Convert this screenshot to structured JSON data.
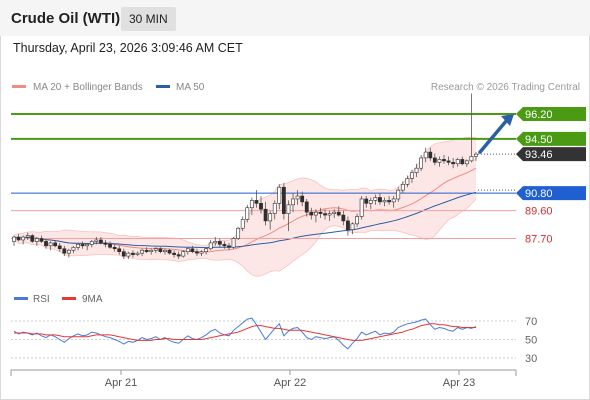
{
  "header": {
    "title": "Crude Oil (WTI)",
    "timeframe": "30 MIN",
    "datetime": "Thursday, April 23, 2026 3:09:46 AM CET"
  },
  "legend": {
    "ma20_label": "MA 20 + Bollinger Bands",
    "ma50_label": "MA 50",
    "credit": "Research © 2026 Trading Central",
    "ma20_color": "#f28b82",
    "ma50_color": "#2a5fa5"
  },
  "chart_data": [
    {
      "type": "candlestick",
      "title": "",
      "x_ticks": [
        "Apr 21",
        "Apr 22",
        "Apr 23"
      ],
      "levels": [
        {
          "name": "resistance_2",
          "value": 96.2,
          "label": "96.20",
          "color": "#4a9a14",
          "kind": "resistance"
        },
        {
          "name": "resistance_1",
          "value": 94.5,
          "label": "94.50",
          "color": "#4a9a14",
          "kind": "resistance"
        },
        {
          "name": "last_price",
          "value": 93.46,
          "label": "93.46",
          "color": "#333333",
          "kind": "price"
        },
        {
          "name": "pivot",
          "value": 90.8,
          "label": "90.80",
          "color": "#1f5fcf",
          "kind": "pivot"
        },
        {
          "name": "support_1",
          "value": 89.6,
          "label": "89.60",
          "color": "#d32f2f",
          "kind": "support"
        },
        {
          "name": "support_2",
          "value": 87.7,
          "label": "87.70",
          "color": "#d32f2f",
          "kind": "support"
        }
      ],
      "ohlc": [
        [
          87.5,
          87.9,
          87.2,
          87.8
        ],
        [
          87.8,
          88.0,
          87.5,
          87.6
        ],
        [
          87.6,
          87.9,
          87.3,
          87.8
        ],
        [
          87.8,
          88.1,
          87.6,
          87.9
        ],
        [
          87.9,
          88.0,
          87.4,
          87.5
        ],
        [
          87.5,
          87.8,
          87.2,
          87.7
        ],
        [
          87.7,
          87.9,
          87.4,
          87.5
        ],
        [
          87.5,
          87.6,
          87.0,
          87.2
        ],
        [
          87.2,
          87.5,
          86.9,
          87.4
        ],
        [
          87.4,
          87.6,
          87.1,
          87.2
        ],
        [
          87.2,
          87.4,
          86.8,
          87.0
        ],
        [
          87.0,
          87.2,
          86.5,
          86.7
        ],
        [
          86.7,
          87.0,
          86.4,
          86.9
        ],
        [
          86.9,
          87.2,
          86.7,
          87.1
        ],
        [
          87.1,
          87.4,
          86.9,
          87.3
        ],
        [
          87.3,
          87.5,
          87.0,
          87.2
        ],
        [
          87.2,
          87.4,
          86.9,
          87.3
        ],
        [
          87.3,
          87.6,
          87.1,
          87.5
        ],
        [
          87.5,
          87.8,
          87.3,
          87.6
        ],
        [
          87.6,
          87.8,
          87.3,
          87.4
        ],
        [
          87.4,
          87.6,
          87.1,
          87.3
        ],
        [
          87.3,
          87.5,
          87.0,
          87.1
        ],
        [
          87.1,
          87.3,
          86.8,
          87.0
        ],
        [
          87.0,
          87.2,
          86.6,
          86.8
        ],
        [
          86.8,
          87.0,
          86.3,
          86.5
        ],
        [
          86.5,
          86.8,
          86.3,
          86.7
        ],
        [
          86.7,
          86.9,
          86.4,
          86.6
        ],
        [
          86.6,
          86.8,
          86.5,
          86.7
        ],
        [
          86.7,
          87.0,
          86.5,
          86.9
        ],
        [
          86.9,
          87.1,
          86.7,
          86.8
        ],
        [
          86.8,
          87.0,
          86.6,
          86.9
        ],
        [
          86.9,
          87.1,
          86.7,
          87.0
        ],
        [
          87.0,
          87.1,
          86.7,
          86.8
        ],
        [
          86.8,
          87.0,
          86.6,
          86.9
        ],
        [
          86.9,
          87.0,
          86.6,
          86.7
        ],
        [
          86.7,
          86.9,
          86.4,
          86.6
        ],
        [
          86.6,
          86.8,
          86.3,
          86.5
        ],
        [
          86.5,
          86.9,
          86.4,
          86.8
        ],
        [
          86.8,
          87.1,
          86.6,
          87.0
        ],
        [
          87.0,
          87.2,
          86.7,
          86.8
        ],
        [
          86.8,
          87.0,
          86.5,
          86.7
        ],
        [
          86.7,
          86.9,
          86.5,
          86.8
        ],
        [
          86.8,
          87.1,
          86.6,
          87.0
        ],
        [
          87.0,
          87.6,
          86.9,
          87.4
        ],
        [
          87.4,
          87.8,
          87.2,
          87.5
        ],
        [
          87.5,
          87.7,
          87.1,
          87.3
        ],
        [
          87.3,
          87.5,
          87.0,
          87.2
        ],
        [
          87.2,
          87.4,
          86.9,
          87.1
        ],
        [
          87.1,
          87.8,
          87.0,
          87.7
        ],
        [
          87.7,
          88.5,
          87.6,
          88.4
        ],
        [
          88.4,
          89.2,
          88.2,
          89.0
        ],
        [
          89.0,
          90.0,
          88.8,
          89.8
        ],
        [
          89.8,
          90.5,
          89.3,
          90.3
        ],
        [
          90.3,
          91.0,
          89.8,
          90.1
        ],
        [
          90.1,
          90.6,
          89.4,
          89.7
        ],
        [
          89.7,
          90.2,
          88.6,
          88.9
        ],
        [
          88.9,
          89.6,
          88.3,
          89.4
        ],
        [
          89.4,
          90.3,
          89.0,
          90.1
        ],
        [
          90.1,
          91.4,
          89.7,
          91.2
        ],
        [
          91.2,
          91.5,
          89.0,
          89.4
        ],
        [
          89.4,
          90.3,
          88.2,
          90.0
        ],
        [
          90.0,
          90.8,
          89.5,
          90.4
        ],
        [
          90.4,
          91.0,
          90.0,
          90.6
        ],
        [
          90.6,
          90.9,
          89.9,
          90.2
        ],
        [
          90.2,
          90.4,
          89.2,
          89.5
        ],
        [
          89.5,
          89.8,
          89.0,
          89.3
        ],
        [
          89.3,
          89.7,
          88.8,
          89.5
        ],
        [
          89.5,
          89.8,
          89.1,
          89.4
        ],
        [
          89.4,
          89.7,
          89.0,
          89.3
        ],
        [
          89.3,
          89.6,
          88.9,
          89.4
        ],
        [
          89.4,
          89.7,
          89.1,
          89.5
        ],
        [
          89.5,
          89.9,
          89.2,
          89.3
        ],
        [
          89.3,
          89.6,
          88.6,
          88.9
        ],
        [
          88.9,
          89.2,
          87.9,
          88.3
        ],
        [
          88.3,
          88.8,
          88.0,
          88.7
        ],
        [
          88.7,
          89.4,
          88.5,
          89.2
        ],
        [
          89.2,
          90.6,
          89.0,
          90.4
        ],
        [
          90.4,
          90.6,
          89.8,
          90.1
        ],
        [
          90.1,
          90.5,
          89.7,
          90.3
        ],
        [
          90.3,
          90.7,
          90.0,
          90.5
        ],
        [
          90.5,
          90.8,
          90.0,
          90.2
        ],
        [
          90.2,
          90.5,
          89.9,
          90.3
        ],
        [
          90.3,
          90.6,
          90.0,
          90.2
        ],
        [
          90.2,
          90.6,
          89.8,
          90.4
        ],
        [
          90.4,
          91.2,
          90.2,
          91.0
        ],
        [
          91.0,
          91.6,
          90.8,
          91.4
        ],
        [
          91.4,
          92.0,
          91.2,
          91.8
        ],
        [
          91.8,
          92.4,
          91.5,
          92.2
        ],
        [
          92.2,
          92.8,
          91.9,
          92.5
        ],
        [
          92.5,
          93.4,
          92.3,
          93.2
        ],
        [
          93.2,
          93.9,
          92.9,
          93.6
        ],
        [
          93.6,
          93.9,
          93.0,
          93.2
        ],
        [
          93.2,
          93.5,
          92.7,
          92.9
        ],
        [
          92.9,
          93.3,
          92.6,
          93.1
        ],
        [
          93.1,
          93.4,
          92.8,
          93.0
        ],
        [
          93.0,
          93.3,
          92.7,
          92.9
        ],
        [
          92.9,
          93.2,
          92.5,
          92.8
        ],
        [
          92.8,
          93.2,
          92.6,
          93.1
        ],
        [
          93.1,
          93.3,
          92.7,
          92.8
        ],
        [
          92.8,
          93.1,
          92.6,
          93.0
        ],
        [
          93.0,
          97.6,
          92.9,
          93.3
        ],
        [
          93.3,
          93.6,
          93.0,
          93.46
        ]
      ]
    },
    {
      "type": "line",
      "title": "",
      "series": [
        {
          "name": "RSI",
          "color": "#4a7bd8"
        },
        {
          "name": "9MA",
          "color": "#e53935"
        }
      ],
      "y_ticks": [
        70,
        50,
        30
      ],
      "ylim": [
        20,
        80
      ],
      "rsi": [
        59,
        56,
        58,
        57,
        55,
        57,
        54,
        52,
        55,
        53,
        50,
        47,
        51,
        54,
        56,
        54,
        55,
        58,
        57,
        55,
        53,
        52,
        50,
        48,
        45,
        48,
        47,
        49,
        52,
        50,
        51,
        53,
        50,
        52,
        49,
        47,
        46,
        50,
        54,
        51,
        50,
        52,
        55,
        59,
        61,
        57,
        55,
        54,
        60,
        64,
        68,
        72,
        73,
        66,
        58,
        50,
        56,
        62,
        67,
        54,
        59,
        62,
        63,
        58,
        52,
        50,
        53,
        52,
        51,
        52,
        53,
        49,
        44,
        40,
        46,
        51,
        58,
        55,
        57,
        59,
        55,
        57,
        56,
        58,
        63,
        65,
        67,
        68,
        69,
        71,
        72,
        66,
        61,
        63,
        62,
        60,
        59,
        63,
        61,
        63,
        62,
        64
      ],
      "ma9": [
        57,
        57,
        57,
        57,
        56,
        56,
        56,
        55,
        55,
        55,
        54,
        53,
        53,
        53,
        53,
        53,
        53,
        54,
        55,
        55,
        55,
        55,
        54,
        53,
        52,
        51,
        50,
        49,
        49,
        49,
        49,
        50,
        50,
        51,
        51,
        50,
        50,
        50,
        50,
        50,
        50,
        50,
        51,
        52,
        53,
        54,
        55,
        56,
        57,
        58,
        60,
        62,
        64,
        65,
        65,
        64,
        63,
        62,
        62,
        61,
        60,
        60,
        60,
        60,
        59,
        58,
        57,
        56,
        55,
        54,
        53,
        52,
        51,
        50,
        49,
        49,
        49,
        50,
        51,
        52,
        53,
        54,
        55,
        56,
        57,
        58,
        60,
        61,
        63,
        65,
        66,
        67,
        67,
        66,
        66,
        65,
        64,
        64,
        63,
        63,
        63,
        63
      ]
    }
  ]
}
